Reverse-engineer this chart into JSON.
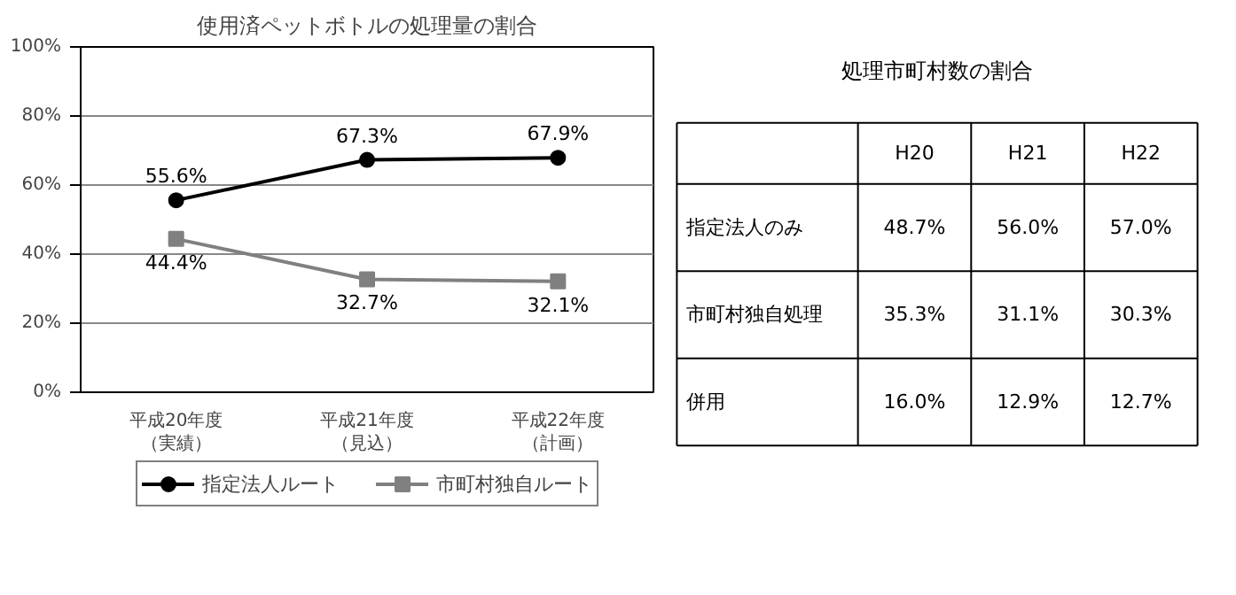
{
  "chart_data": [
    {
      "type": "line",
      "title": "使用済ペットボトルの処理量の割合",
      "categories": [
        "平成20年度（実績）",
        "平成21年度（見込）",
        "平成22年度（計画）"
      ],
      "series": [
        {
          "name": "指定法人ルート",
          "color": "#000000",
          "marker": "circle",
          "values": [
            55.6,
            67.3,
            67.9
          ],
          "value_labels": [
            "55.6%",
            "67.3%",
            "67.9%"
          ]
        },
        {
          "name": "市町村独自ルート",
          "color": "#808080",
          "marker": "square",
          "values": [
            44.4,
            32.7,
            32.1
          ],
          "value_labels": [
            "44.4%",
            "32.7%",
            "32.1%"
          ]
        }
      ],
      "ylim": [
        0,
        100
      ],
      "yticks": [
        {
          "value": 0,
          "label": "0%"
        },
        {
          "value": 20,
          "label": "20%"
        },
        {
          "value": 40,
          "label": "40%"
        },
        {
          "value": 60,
          "label": "60%"
        },
        {
          "value": 80,
          "label": "80%"
        },
        {
          "value": 100,
          "label": "100%"
        }
      ],
      "grid": "y",
      "legend": "bottom"
    },
    {
      "type": "other",
      "title": "処理市町村数の割合",
      "categories": [
        "H20",
        "H21",
        "H22"
      ],
      "y_categories": [
        "指定法人のみ",
        "市町村独自処理",
        "併用"
      ],
      "cell_labels": [
        [
          "48.7%",
          "56.0%",
          "57.0%"
        ],
        [
          "35.3%",
          "31.1%",
          "30.3%"
        ],
        [
          "16.0%",
          "12.9%",
          "12.7%"
        ]
      ]
    }
  ]
}
